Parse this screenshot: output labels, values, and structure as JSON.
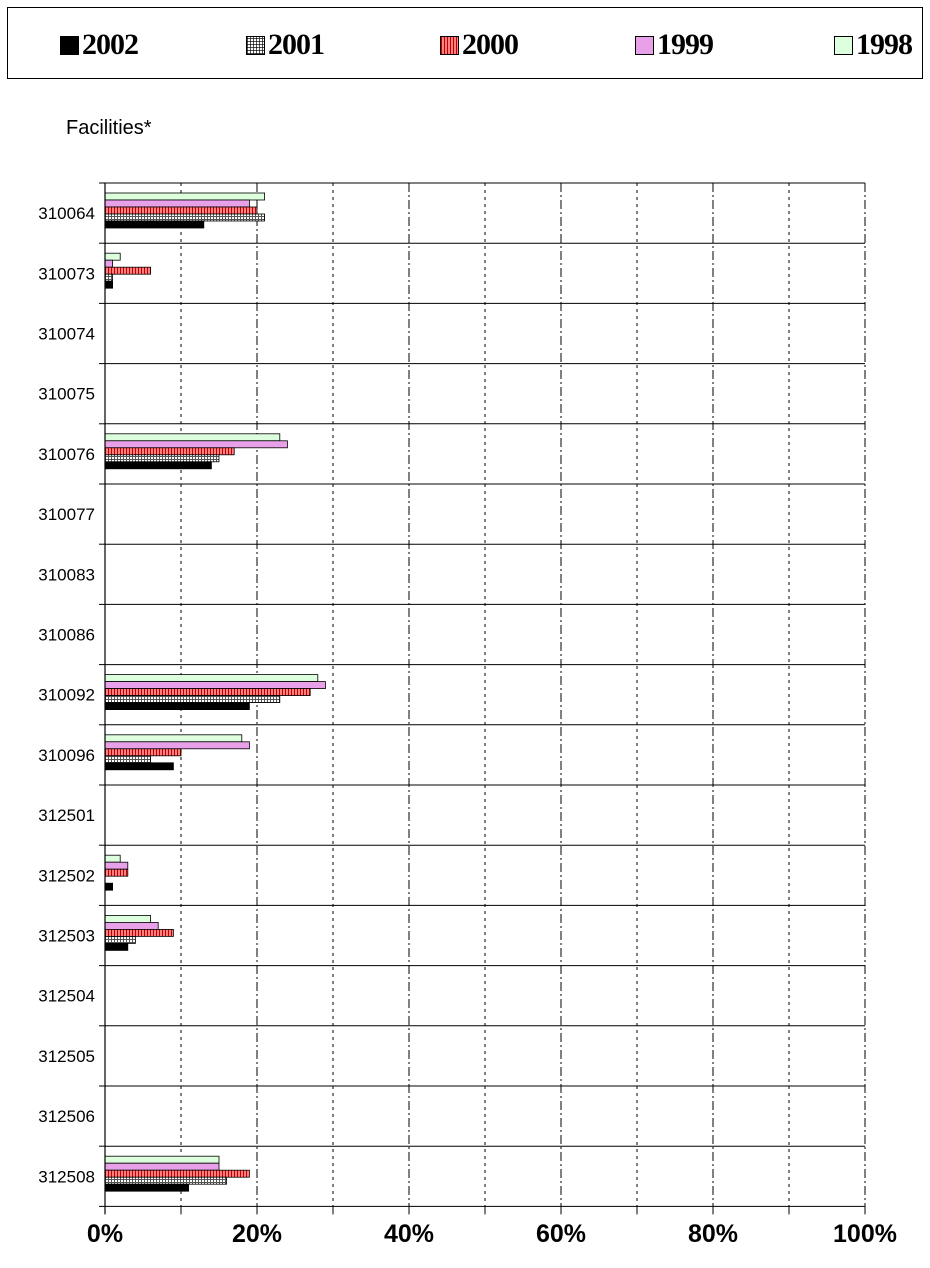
{
  "legend": [
    {
      "label": "2002",
      "color": "#000000",
      "pattern": "solid"
    },
    {
      "label": "2001",
      "color": "#c8c8c8",
      "pattern": "grid"
    },
    {
      "label": "2000",
      "color": "#ff7070",
      "pattern": "vstripes"
    },
    {
      "label": "1999",
      "color": "#e8a0e8",
      "pattern": "solid"
    },
    {
      "label": "1998",
      "color": "#ddffdd",
      "pattern": "solid"
    }
  ],
  "chart_data": {
    "type": "bar",
    "orientation": "horizontal",
    "title": "",
    "ylabel": "Facilities*",
    "xlabel": "",
    "xlim": [
      0,
      100
    ],
    "grid": true,
    "legend_position": "top",
    "categories": [
      "310064",
      "310073",
      "310074",
      "310075",
      "310076",
      "310077",
      "310083",
      "310086",
      "310092",
      "310096",
      "312501",
      "312502",
      "312503",
      "312504",
      "312505",
      "312506",
      "312508"
    ],
    "x_ticks": [
      "0%",
      "20%",
      "40%",
      "60%",
      "80%",
      "100%"
    ],
    "series": [
      {
        "name": "2002",
        "values": [
          13,
          1,
          0,
          0,
          14,
          0,
          0,
          0,
          19,
          9,
          0,
          1,
          3,
          0,
          0,
          0,
          11
        ]
      },
      {
        "name": "2001",
        "values": [
          21,
          1,
          0,
          0,
          15,
          0,
          0,
          0,
          23,
          6,
          0,
          0,
          4,
          0,
          0,
          0,
          16
        ]
      },
      {
        "name": "2000",
        "values": [
          20,
          6,
          0,
          0,
          17,
          0,
          0,
          0,
          27,
          10,
          0,
          3,
          9,
          0,
          0,
          0,
          19
        ]
      },
      {
        "name": "1999",
        "values": [
          19,
          1,
          0,
          0,
          24,
          0,
          0,
          0,
          29,
          19,
          0,
          3,
          7,
          0,
          0,
          0,
          15
        ]
      },
      {
        "name": "1998",
        "values": [
          21,
          2,
          0,
          0,
          23,
          0,
          0,
          0,
          28,
          18,
          0,
          2,
          6,
          0,
          0,
          0,
          15
        ]
      }
    ]
  }
}
